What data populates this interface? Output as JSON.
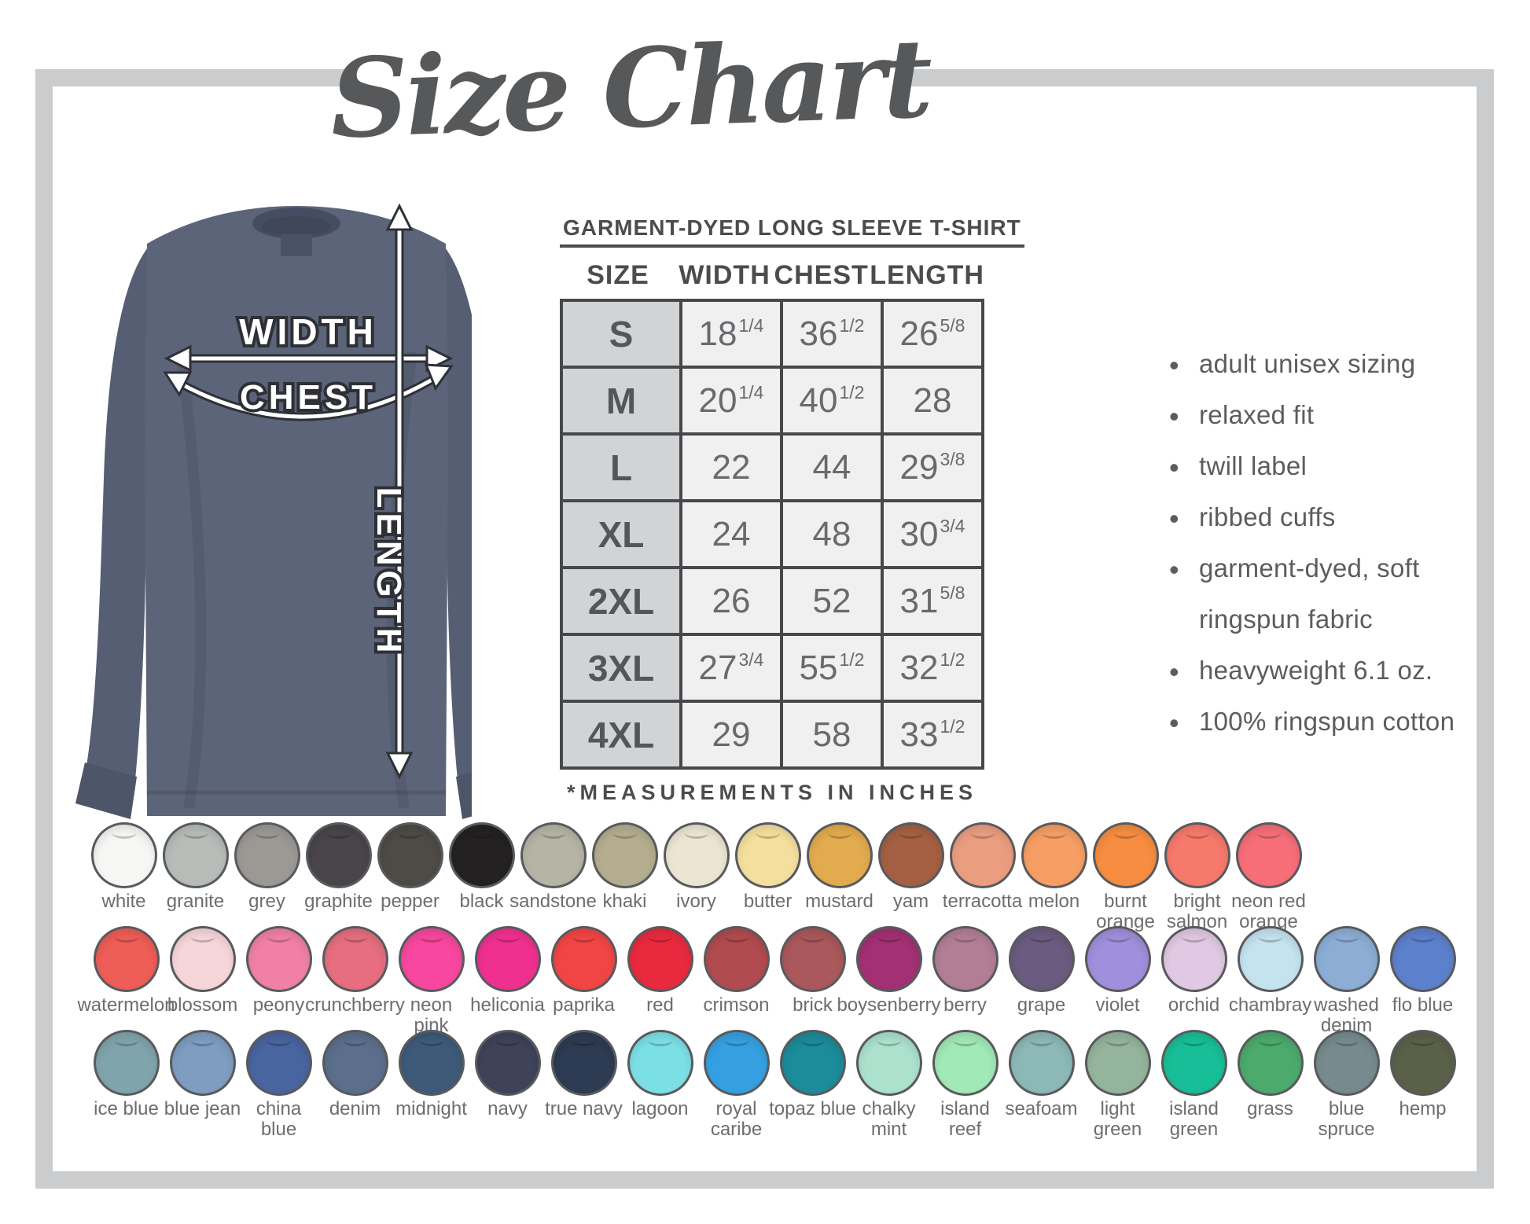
{
  "page": {
    "title": "Size Chart",
    "frame_color": "#cbccce",
    "text_color": "#58595b"
  },
  "diagram": {
    "width_label": "WIDTH",
    "chest_label": "CHEST",
    "length_label": "LENGTH",
    "shirt_color": "#5c6479"
  },
  "size_table": {
    "title": "GARMENT-DYED LONG SLEEVE T-SHIRT",
    "columns": [
      "SIZE",
      "WIDTH",
      "CHEST",
      "LENGTH"
    ],
    "rows": [
      {
        "size": "S",
        "width": "18",
        "width_frac": "1/4",
        "chest": "36",
        "chest_frac": "1/2",
        "length": "26",
        "length_frac": "5/8"
      },
      {
        "size": "M",
        "width": "20",
        "width_frac": "1/4",
        "chest": "40",
        "chest_frac": "1/2",
        "length": "28",
        "length_frac": ""
      },
      {
        "size": "L",
        "width": "22",
        "width_frac": "",
        "chest": "44",
        "chest_frac": "",
        "length": "29",
        "length_frac": "3/8"
      },
      {
        "size": "XL",
        "width": "24",
        "width_frac": "",
        "chest": "48",
        "chest_frac": "",
        "length": "30",
        "length_frac": "3/4"
      },
      {
        "size": "2XL",
        "width": "26",
        "width_frac": "",
        "chest": "52",
        "chest_frac": "",
        "length": "31",
        "length_frac": "5/8"
      },
      {
        "size": "3XL",
        "width": "27",
        "width_frac": "3/4",
        "chest": "55",
        "chest_frac": "1/2",
        "length": "32",
        "length_frac": "1/2"
      },
      {
        "size": "4XL",
        "width": "29",
        "width_frac": "",
        "chest": "58",
        "chest_frac": "",
        "length": "33",
        "length_frac": "1/2"
      }
    ],
    "footnote": "*MEASUREMENTS IN INCHES"
  },
  "features": [
    "adult unisex sizing",
    "relaxed fit",
    "twill label",
    "ribbed cuffs",
    "garment-dyed, soft ringspun fabric",
    "heavyweight 6.1 oz.",
    "100% ringspun cotton"
  ],
  "swatch_rows": [
    [
      {
        "name": "white",
        "label": "white",
        "color": "#f6f6f4"
      },
      {
        "name": "granite",
        "label": "granite",
        "color": "#b7bcb9"
      },
      {
        "name": "grey",
        "label": "grey",
        "color": "#9c9995"
      },
      {
        "name": "graphite",
        "label": "graphite",
        "color": "#49454a"
      },
      {
        "name": "pepper",
        "label": "pepper",
        "color": "#4e4b45"
      },
      {
        "name": "black",
        "label": "black",
        "color": "#242122"
      },
      {
        "name": "sandstone",
        "label": "sandstone",
        "color": "#b6b4a4"
      },
      {
        "name": "khaki",
        "label": "khaki",
        "color": "#b4ad8f"
      },
      {
        "name": "ivory",
        "label": "ivory",
        "color": "#ede5d3"
      },
      {
        "name": "butter",
        "label": "butter",
        "color": "#f4df9e"
      },
      {
        "name": "mustard",
        "label": "mustard",
        "color": "#e2ab4d"
      },
      {
        "name": "yam",
        "label": "yam",
        "color": "#a56043"
      },
      {
        "name": "terracotta",
        "label": "terracotta",
        "color": "#eb9d80"
      },
      {
        "name": "melon",
        "label": "melon",
        "color": "#f79e64"
      },
      {
        "name": "burnt-orange",
        "label": "burnt\norange",
        "color": "#f78d41"
      },
      {
        "name": "bright-salmon",
        "label": "bright\nsalmon",
        "color": "#f6796c"
      },
      {
        "name": "neon-red-orange",
        "label": "neon red\norange",
        "color": "#f76e79"
      }
    ],
    [
      {
        "name": "watermelon",
        "label": "watermelon",
        "color": "#ee5d57"
      },
      {
        "name": "blossom",
        "label": "blossom",
        "color": "#f7d6da"
      },
      {
        "name": "peony",
        "label": "peony",
        "color": "#f180a6"
      },
      {
        "name": "crunchberry",
        "label": "crunchberry",
        "color": "#e66e7e"
      },
      {
        "name": "neon-pink",
        "label": "neon\npink",
        "color": "#f7479e"
      },
      {
        "name": "heliconia",
        "label": "heliconia",
        "color": "#f0308f"
      },
      {
        "name": "paprika",
        "label": "paprika",
        "color": "#f14544"
      },
      {
        "name": "red",
        "label": "red",
        "color": "#e92a3e"
      },
      {
        "name": "crimson",
        "label": "crimson",
        "color": "#b14b4f"
      },
      {
        "name": "brick",
        "label": "brick",
        "color": "#aa585b"
      },
      {
        "name": "boysenberry",
        "label": "boysenberry",
        "color": "#a33073"
      },
      {
        "name": "berry",
        "label": "berry",
        "color": "#b27e96"
      },
      {
        "name": "grape",
        "label": "grape",
        "color": "#6b5b81"
      },
      {
        "name": "violet",
        "label": "violet",
        "color": "#9f8fdc"
      },
      {
        "name": "orchid",
        "label": "orchid",
        "color": "#e0c9e2"
      },
      {
        "name": "chambray",
        "label": "chambray",
        "color": "#c5e2ef"
      },
      {
        "name": "washed-denim",
        "label": "washed\ndenim",
        "color": "#8caed5"
      },
      {
        "name": "flo-blue",
        "label": "flo blue",
        "color": "#5d80cd"
      }
    ],
    [
      {
        "name": "ice-blue",
        "label": "ice blue",
        "color": "#80a4ac"
      },
      {
        "name": "blue-jean",
        "label": "blue jean",
        "color": "#7e9dc1"
      },
      {
        "name": "china-blue",
        "label": "china\nblue",
        "color": "#49659f"
      },
      {
        "name": "denim",
        "label": "denim",
        "color": "#5b6f8d"
      },
      {
        "name": "midnight",
        "label": "midnight",
        "color": "#3d5b79"
      },
      {
        "name": "navy",
        "label": "navy",
        "color": "#3f435a"
      },
      {
        "name": "true-navy",
        "label": "true navy",
        "color": "#2d3b53"
      },
      {
        "name": "lagoon",
        "label": "lagoon",
        "color": "#7be0e5"
      },
      {
        "name": "royal-caribe",
        "label": "royal\ncaribe",
        "color": "#35a0e1"
      },
      {
        "name": "topaz-blue",
        "label": "topaz blue",
        "color": "#1c8b9a"
      },
      {
        "name": "chalky-mint",
        "label": "chalky\nmint",
        "color": "#ace1ce"
      },
      {
        "name": "island-reef",
        "label": "island\nreef",
        "color": "#a1e9b7"
      },
      {
        "name": "seafoam",
        "label": "seafoam",
        "color": "#8cb9b8"
      },
      {
        "name": "light-green",
        "label": "light\ngreen",
        "color": "#94b49b"
      },
      {
        "name": "island-green",
        "label": "island\ngreen",
        "color": "#18be97"
      },
      {
        "name": "grass",
        "label": "grass",
        "color": "#4caa6d"
      },
      {
        "name": "blue-spruce",
        "label": "blue\nspruce",
        "color": "#778b8f"
      },
      {
        "name": "hemp",
        "label": "hemp",
        "color": "#5b6149"
      }
    ]
  ]
}
